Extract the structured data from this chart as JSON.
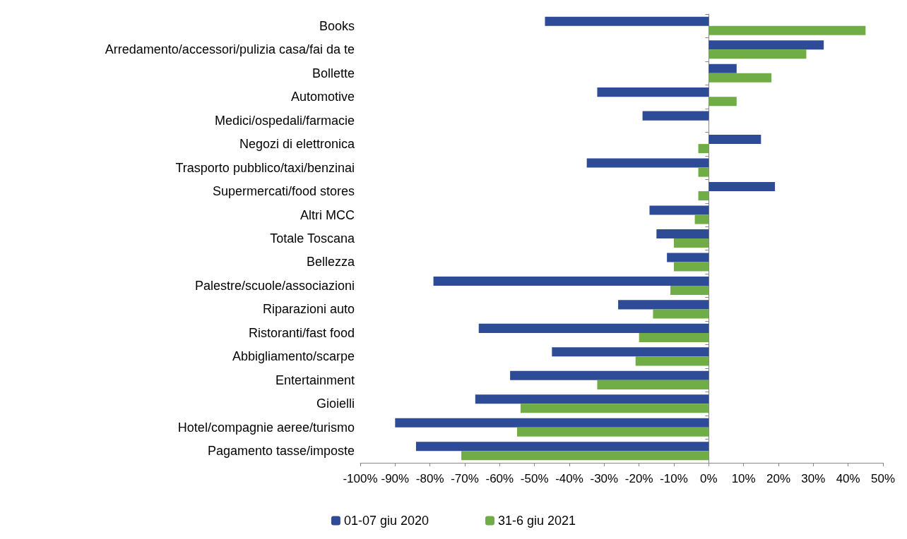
{
  "chart_data": {
    "type": "bar",
    "orientation": "horizontal",
    "categories": [
      "Books",
      "Arredamento/accessori/pulizia casa/fai da te",
      "Bollette",
      "Automotive",
      "Medici/ospedali/farmacie",
      "Negozi di elettronica",
      "Trasporto pubblico/taxi/benzinai",
      "Supermercati/food stores",
      "Altri MCC",
      "Totale Toscana",
      "Bellezza",
      "Palestre/scuole/associazioni",
      "Riparazioni auto",
      "Ristoranti/fast food",
      "Abbigliamento/scarpe",
      "Entertainment",
      "Gioielli",
      "Hotel/compagnie aeree/turismo",
      "Pagamento tasse/imposte"
    ],
    "series": [
      {
        "name": "01-07 giu 2020",
        "color": "#2e4b97",
        "values": [
          -47,
          33,
          8,
          -32,
          -19,
          15,
          -35,
          19,
          -17,
          -15,
          -12,
          -79,
          -26,
          -66,
          -45,
          -57,
          -67,
          -90,
          -84
        ]
      },
      {
        "name": "31-6 giu 2021",
        "color": "#70ad47",
        "values": [
          45,
          28,
          18,
          8,
          null,
          -3,
          -3,
          -3,
          -4,
          -10,
          -10,
          -11,
          -16,
          -20,
          -21,
          -32,
          -54,
          -55,
          -71
        ]
      }
    ],
    "xlim": [
      -100,
      50
    ],
    "xticks": [
      {
        "value": -100,
        "label": "-100%"
      },
      {
        "value": -90,
        "label": "-90%"
      },
      {
        "value": -80,
        "label": "-80%"
      },
      {
        "value": -70,
        "label": "-70%"
      },
      {
        "value": -60,
        "label": "-60%"
      },
      {
        "value": -50,
        "label": "-50%"
      },
      {
        "value": -40,
        "label": "-40%"
      },
      {
        "value": -30,
        "label": "-30%"
      },
      {
        "value": -20,
        "label": "-20%"
      },
      {
        "value": -10,
        "label": "-10%"
      },
      {
        "value": 0,
        "label": "0%"
      },
      {
        "value": 10,
        "label": "10%"
      },
      {
        "value": 20,
        "label": "20%"
      },
      {
        "value": 30,
        "label": "30%"
      },
      {
        "value": 40,
        "label": "40%"
      },
      {
        "value": 50,
        "label": "50%"
      }
    ],
    "legend": "bottom"
  }
}
